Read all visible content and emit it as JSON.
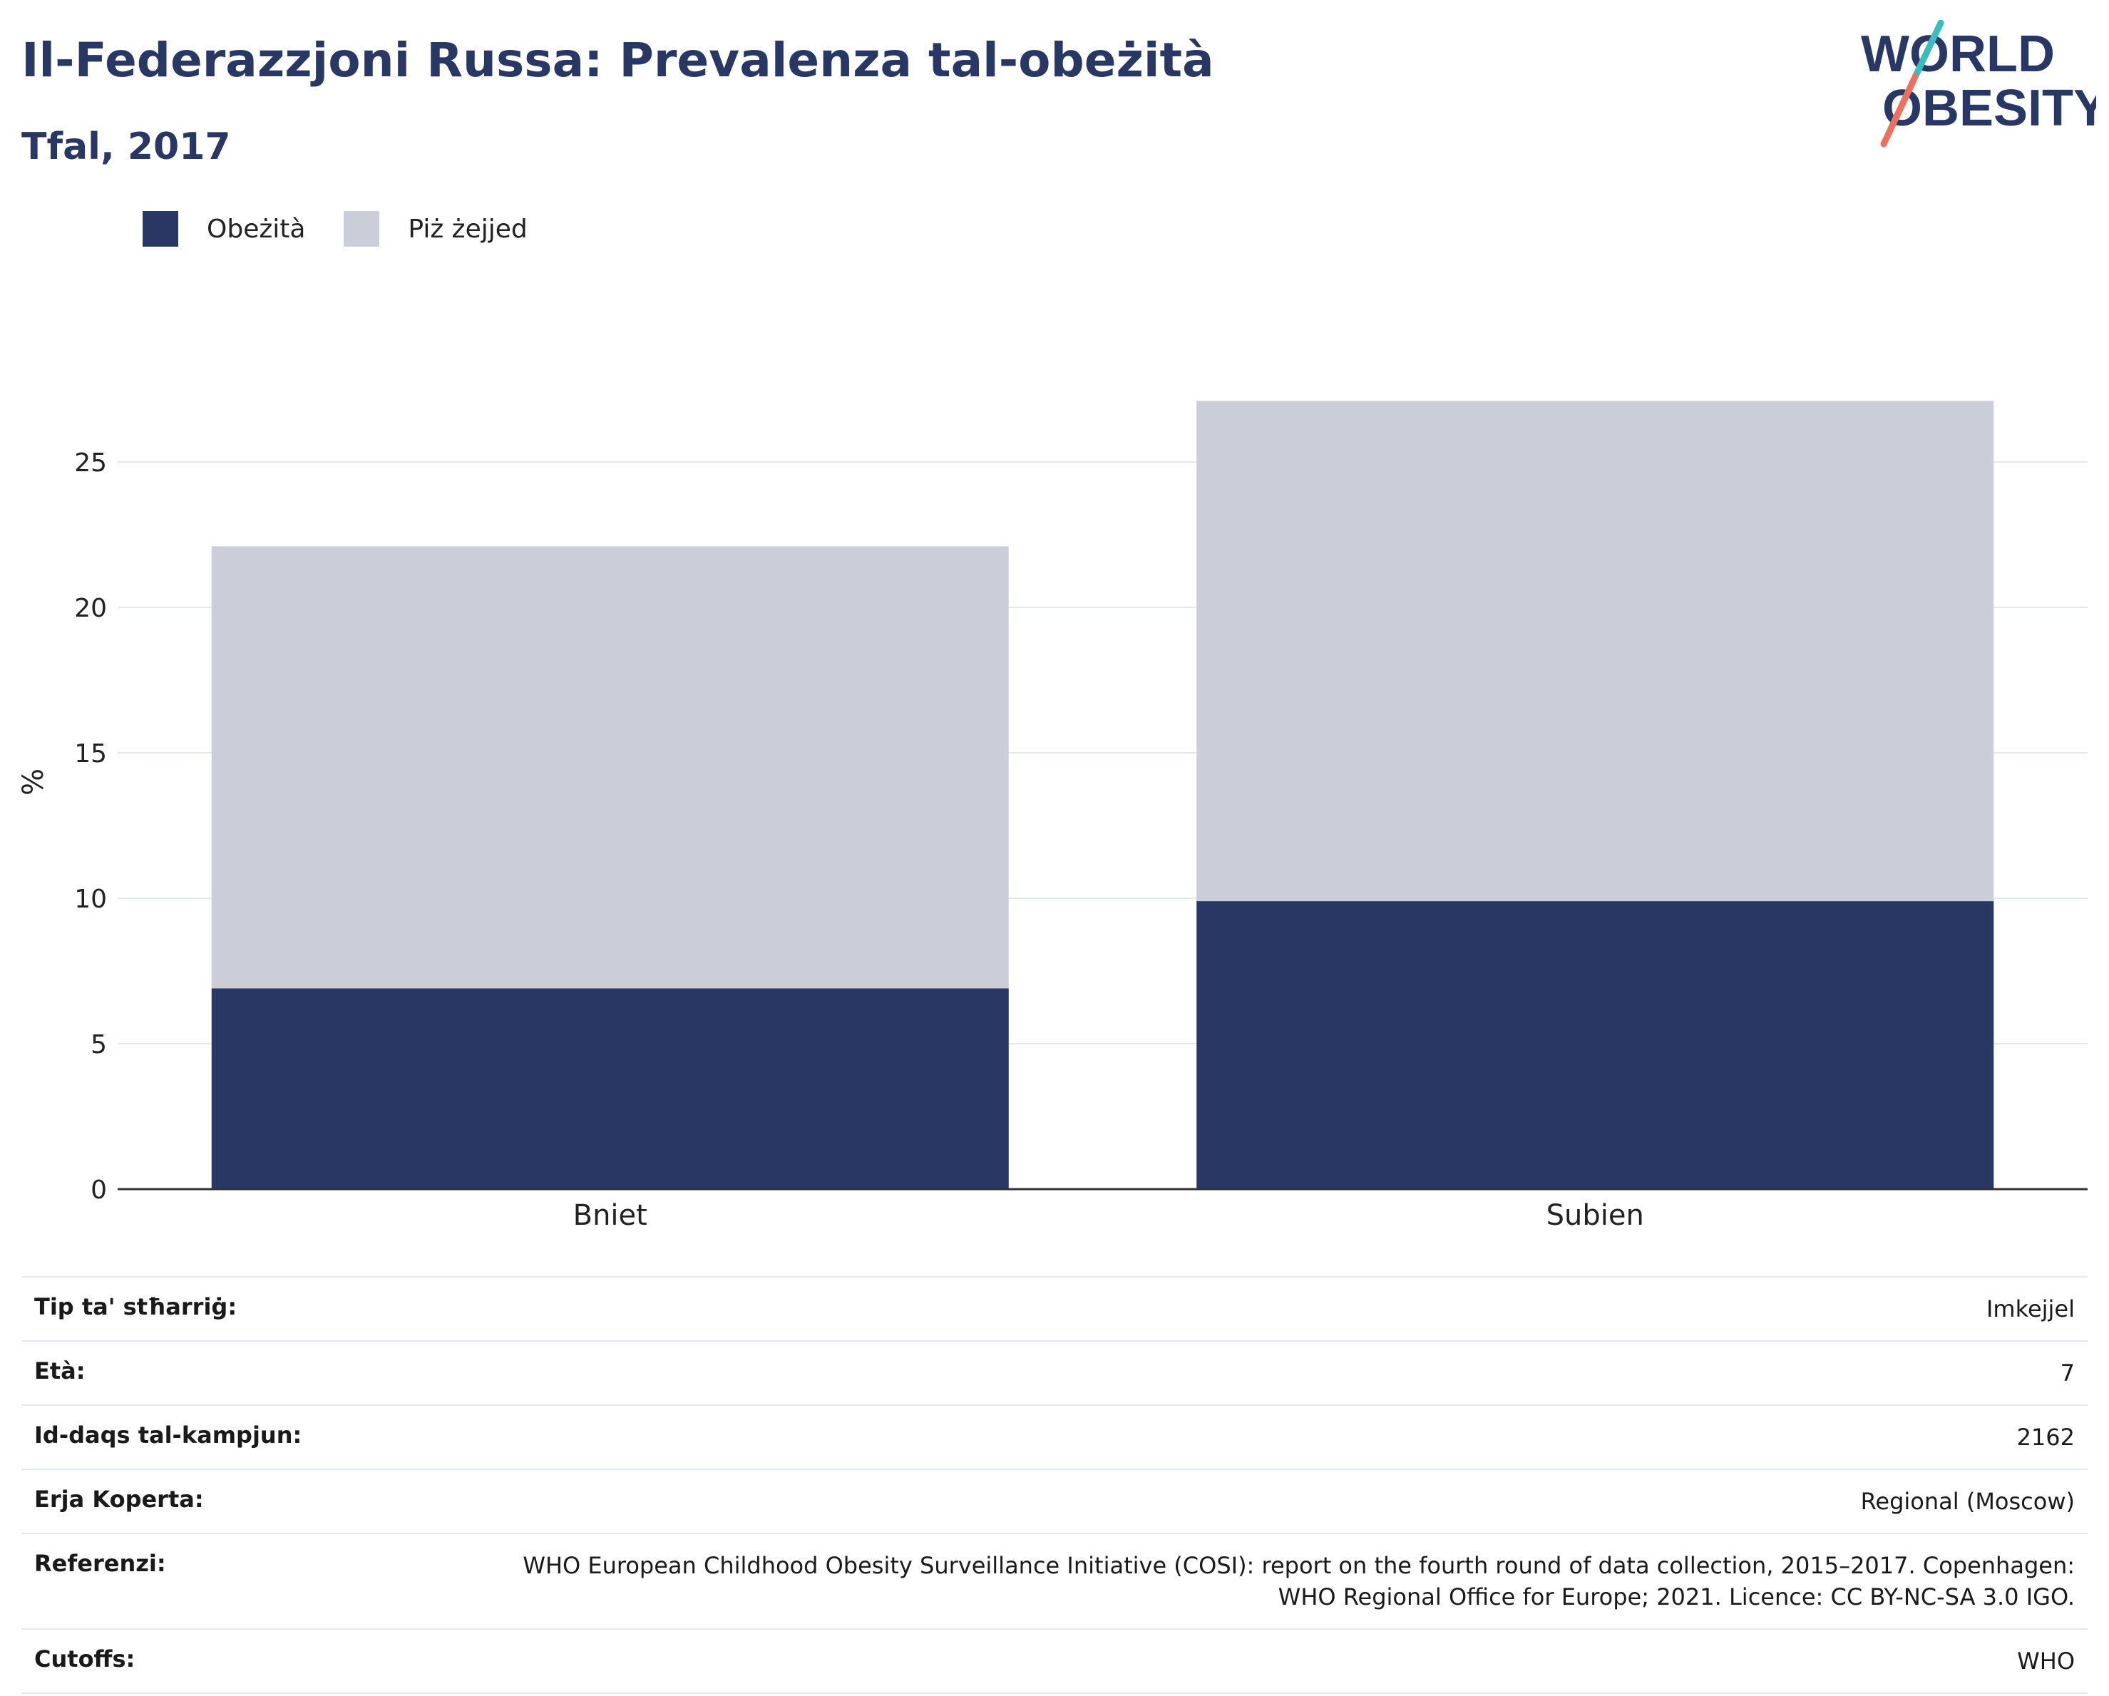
{
  "header": {
    "title": "Il-Federazzjoni Russa: Prevalenza tal-obeżità",
    "subtitle": "Tfal, 2017"
  },
  "logo": {
    "line1": "WORLD",
    "line2": "OBESITY"
  },
  "colors": {
    "obesity": "#283764",
    "overweight": "#cbcdd8",
    "accent_teal": "#3bbdbd",
    "accent_coral": "#e8725f"
  },
  "chart_data": {
    "type": "bar",
    "stacked": true,
    "categories": [
      "Bniet",
      "Subien"
    ],
    "series": [
      {
        "name": "Obeżità",
        "values": [
          6.9,
          9.9
        ]
      },
      {
        "name": "Piż żejjed",
        "values": [
          15.2,
          17.2
        ]
      }
    ],
    "title": "Il-Federazzjoni Russa: Prevalenza tal-obeżità",
    "subtitle": "Tfal, 2017",
    "xlabel": "",
    "ylabel": "%",
    "ylim": [
      0,
      28
    ],
    "yticks": [
      0,
      5,
      10,
      15,
      20,
      25
    ],
    "grid": true,
    "legend_position": "top-left"
  },
  "legend": [
    {
      "label": "Obeżità",
      "color": "#283764"
    },
    {
      "label": "Piż żejjed",
      "color": "#cbcdd8"
    }
  ],
  "info": [
    {
      "key": "Tip ta' stħarriġ:",
      "value": "Imkejjel"
    },
    {
      "key": "Età:",
      "value": "7"
    },
    {
      "key": "Id-daqs tal-kampjun:",
      "value": "2162"
    },
    {
      "key": "Erja Koperta:",
      "value": "Regional (Moscow)"
    },
    {
      "key": "Referenzi:",
      "value": "WHO European Childhood Obesity Surveillance Initiative (COSI): report on the fourth round of data collection, 2015–2017. Copenhagen: WHO Regional Office for Europe; 2021. Licence: CC BY-NC-SA 3.0 IGO."
    },
    {
      "key": "Cutoffs:",
      "value": "WHO"
    }
  ]
}
